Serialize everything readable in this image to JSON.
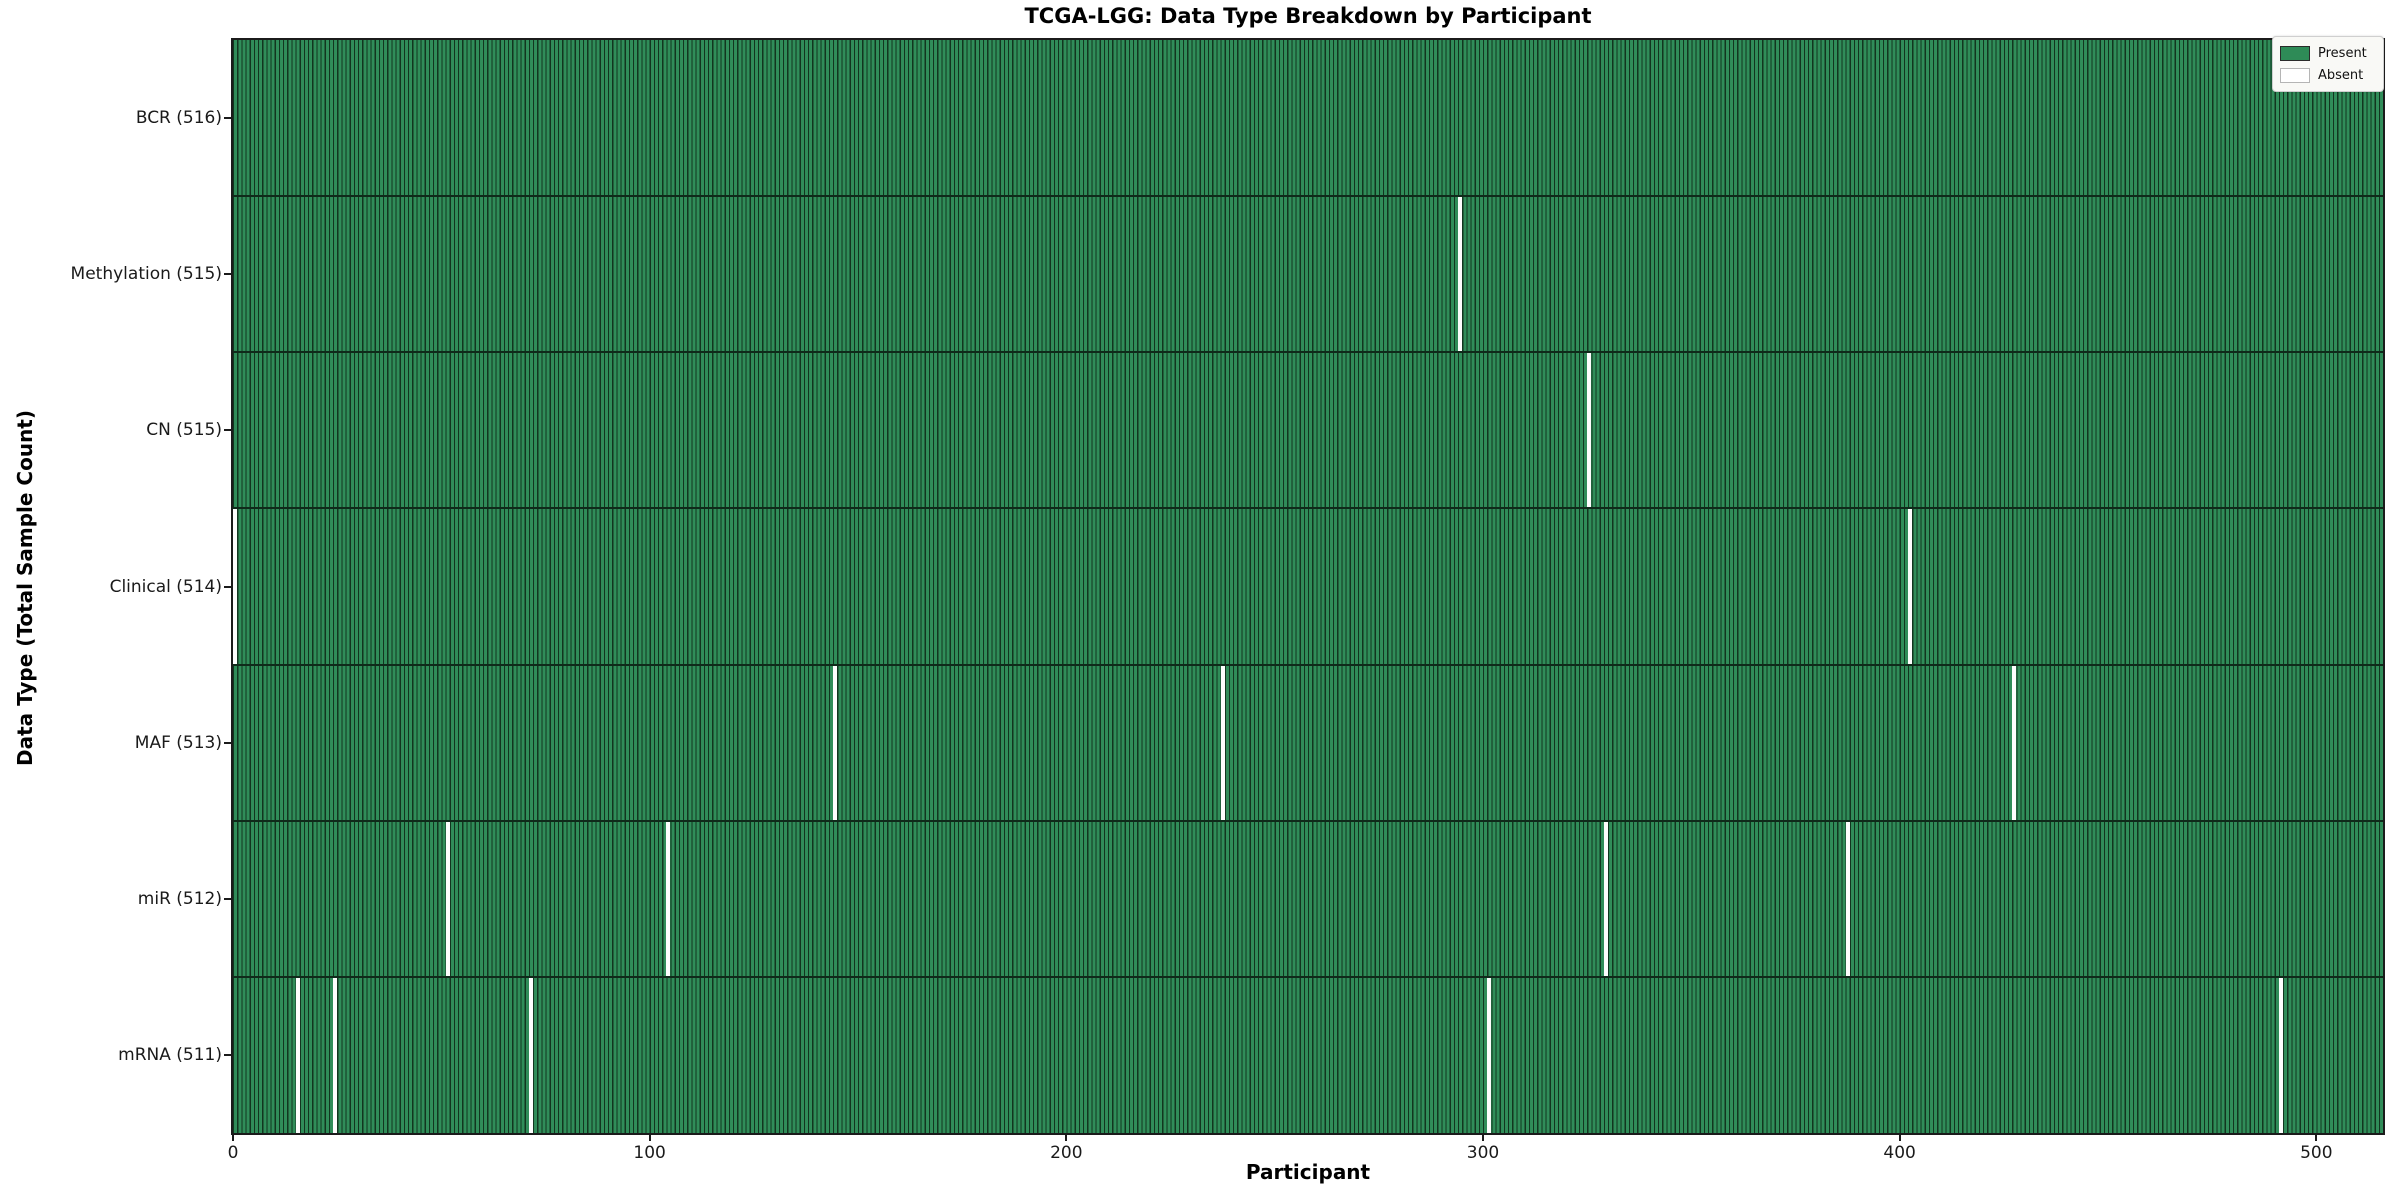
{
  "title": "TCGA-LGG: Data Type Breakdown by Participant",
  "colors": {
    "present": "#2e8b57",
    "present_edge": "#12351f",
    "absent": "#ffffff",
    "separator": "#0f2a1a",
    "plot_border": "#1b1b1b",
    "legend_bg": "#f9f9f6",
    "legend_border": "#cfcfcf",
    "text": "#000000"
  },
  "legend": {
    "position": "upper-right",
    "items": [
      {
        "label": "Present",
        "color": "#2e8b57"
      },
      {
        "label": "Absent",
        "color": "#ffffff"
      }
    ]
  },
  "chart_data": {
    "type": "heatmap",
    "title": "TCGA-LGG: Data Type Breakdown by Participant",
    "xlabel": "Participant",
    "ylabel": "Data Type (Total Sample Count)",
    "x_ticks": [
      0,
      100,
      200,
      300,
      400,
      500
    ],
    "x_range": [
      0,
      516
    ],
    "n_participants": 516,
    "cell_values": {
      "present": 1,
      "absent": 0
    },
    "grid": false,
    "rows": [
      {
        "label": "BCR (516)",
        "data_type": "BCR",
        "total_samples": 516,
        "absent_participant_indices": []
      },
      {
        "label": "Methylation (515)",
        "data_type": "Methylation",
        "total_samples": 515,
        "absent_participant_indices": [
          294
        ]
      },
      {
        "label": "CN (515)",
        "data_type": "CN",
        "total_samples": 515,
        "absent_participant_indices": [
          325
        ]
      },
      {
        "label": "Clinical (514)",
        "data_type": "Clinical",
        "total_samples": 514,
        "absent_participant_indices": [
          0,
          402
        ]
      },
      {
        "label": "MAF (513)",
        "data_type": "MAF",
        "total_samples": 513,
        "absent_participant_indices": [
          144,
          237,
          427
        ]
      },
      {
        "label": "miR (512)",
        "data_type": "miR",
        "total_samples": 512,
        "absent_participant_indices": [
          51,
          104,
          329,
          387
        ]
      },
      {
        "label": "mRNA (511)",
        "data_type": "mRNA",
        "total_samples": 511,
        "absent_participant_indices": [
          15,
          24,
          71,
          301,
          491
        ]
      }
    ],
    "legend_entries": [
      "Present",
      "Absent"
    ]
  }
}
